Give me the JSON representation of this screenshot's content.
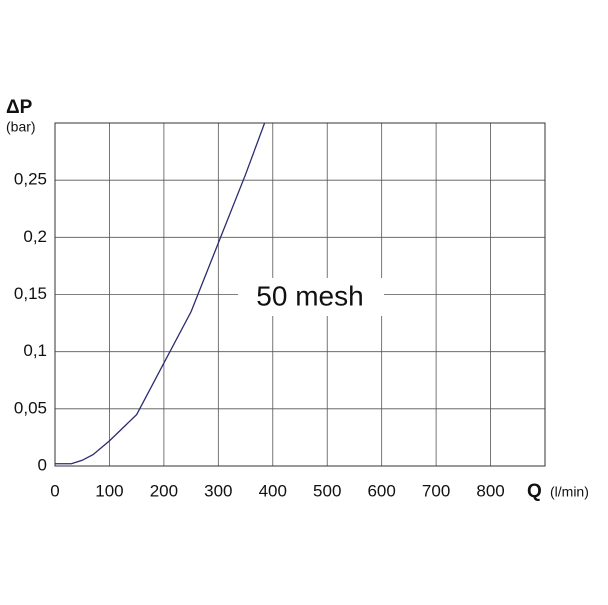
{
  "chart_data": {
    "type": "line",
    "ylabel": "ΔP",
    "yunit": "(bar)",
    "xlabel": "Q",
    "xunit": "(l/min)",
    "annotation": "50 mesh",
    "x": [
      0,
      30,
      50,
      70,
      100,
      150,
      200,
      250,
      300,
      350,
      385
    ],
    "series": [
      {
        "name": "50 mesh",
        "color": "#2b2b70",
        "values": [
          0.002,
          0.002,
          0.005,
          0.01,
          0.022,
          0.045,
          0.09,
          0.135,
          0.195,
          0.255,
          0.3
        ]
      }
    ],
    "xlim": [
      0,
      900
    ],
    "xticks": [
      0,
      100,
      200,
      300,
      400,
      500,
      600,
      700,
      800
    ],
    "ylim": [
      0,
      0.3
    ],
    "yticks": [
      0,
      {
        "value": 0.05,
        "label": "0,05"
      },
      {
        "value": 0.1,
        "label": "0,1"
      },
      {
        "value": 0.15,
        "label": "0,15"
      },
      {
        "value": 0.2,
        "label": "0,2"
      },
      {
        "value": 0.25,
        "label": "0,25"
      }
    ],
    "grid": true
  }
}
